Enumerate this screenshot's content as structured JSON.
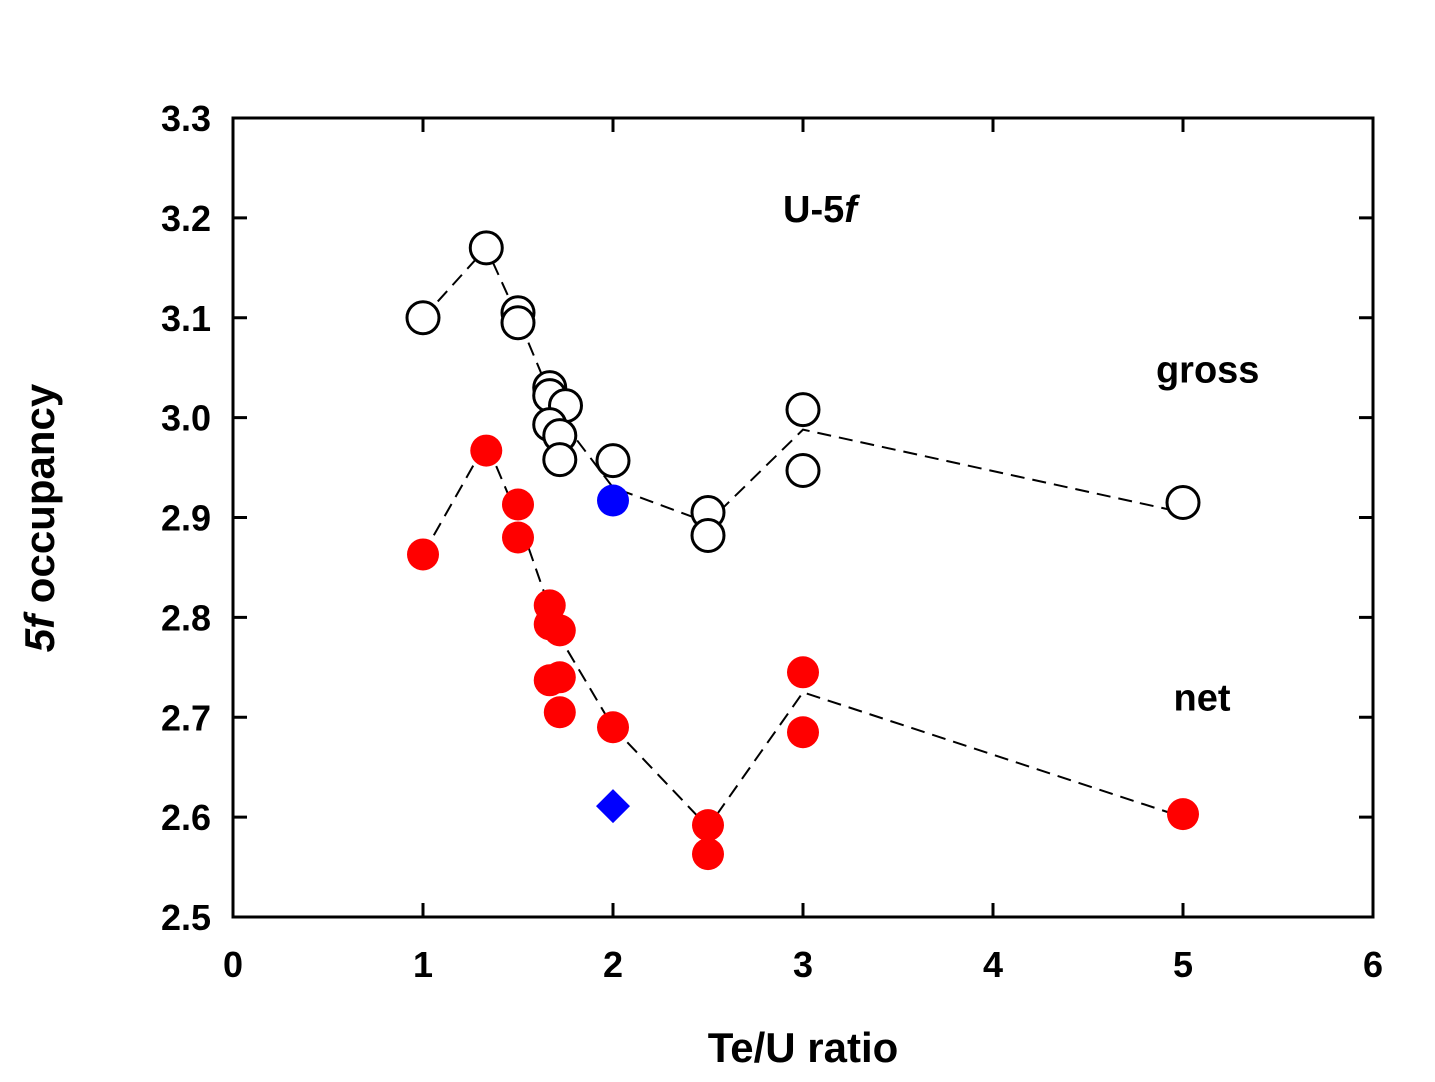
{
  "chart_data": {
    "type": "scatter",
    "title": "",
    "annotation": {
      "prefix": "U-5",
      "italic": "f"
    },
    "xlabel": "Te/U ratio",
    "ylabel": {
      "italic": "5f",
      "rest": " occupancy"
    },
    "xlim": [
      0,
      6
    ],
    "ylim": [
      2.5,
      3.3
    ],
    "xticks": [
      "0",
      "1",
      "2",
      "3",
      "4",
      "5",
      "6"
    ],
    "yticks": [
      "2.5",
      "2.6",
      "2.7",
      "2.8",
      "2.9",
      "3.0",
      "3.1",
      "3.2",
      "3.3"
    ],
    "grid": false,
    "series": [
      {
        "name": "gross",
        "marker": "open-circle",
        "color": "#000000",
        "points": [
          [
            1.0,
            3.1
          ],
          [
            1.333,
            3.17
          ],
          [
            1.5,
            3.105
          ],
          [
            1.5,
            3.095
          ],
          [
            1.667,
            3.03
          ],
          [
            1.667,
            3.022
          ],
          [
            1.75,
            3.012
          ],
          [
            1.667,
            2.993
          ],
          [
            1.72,
            2.982
          ],
          [
            1.72,
            2.958
          ],
          [
            2.0,
            2.957
          ],
          [
            2.5,
            2.905
          ],
          [
            2.5,
            2.882
          ],
          [
            3.0,
            3.008
          ],
          [
            3.0,
            2.947
          ],
          [
            5.0,
            2.915
          ]
        ],
        "trend": [
          [
            1.0,
            3.1
          ],
          [
            1.333,
            3.17
          ],
          [
            1.5,
            3.1
          ],
          [
            1.72,
            3.0
          ],
          [
            2.0,
            2.93
          ],
          [
            2.5,
            2.895
          ],
          [
            3.0,
            2.988
          ],
          [
            5.0,
            2.905
          ]
        ]
      },
      {
        "name": "net",
        "marker": "filled-circle",
        "color": "#ff0000",
        "points": [
          [
            1.0,
            2.863
          ],
          [
            1.333,
            2.967
          ],
          [
            1.5,
            2.913
          ],
          [
            1.5,
            2.88
          ],
          [
            1.667,
            2.812
          ],
          [
            1.667,
            2.793
          ],
          [
            1.72,
            2.787
          ],
          [
            1.667,
            2.737
          ],
          [
            1.72,
            2.74
          ],
          [
            1.72,
            2.705
          ],
          [
            2.0,
            2.69
          ],
          [
            2.5,
            2.592
          ],
          [
            2.5,
            2.563
          ],
          [
            3.0,
            2.745
          ],
          [
            3.0,
            2.685
          ],
          [
            5.0,
            2.603
          ]
        ],
        "trend": [
          [
            1.0,
            2.863
          ],
          [
            1.333,
            2.975
          ],
          [
            1.5,
            2.9
          ],
          [
            1.72,
            2.78
          ],
          [
            2.0,
            2.69
          ],
          [
            2.5,
            2.59
          ],
          [
            3.0,
            2.725
          ],
          [
            5.0,
            2.6
          ]
        ]
      },
      {
        "name": "",
        "marker": "filled-circle",
        "color": "#0000ff",
        "points": [
          [
            2.0,
            2.917
          ]
        ]
      },
      {
        "name": "",
        "marker": "filled-diamond",
        "color": "#0000ff",
        "points": [
          [
            2.0,
            2.611
          ]
        ]
      }
    ],
    "labels": [
      {
        "text": "gross",
        "x": 5.13,
        "y": 3.035
      },
      {
        "text": "net",
        "x": 5.1,
        "y": 2.707
      }
    ]
  }
}
